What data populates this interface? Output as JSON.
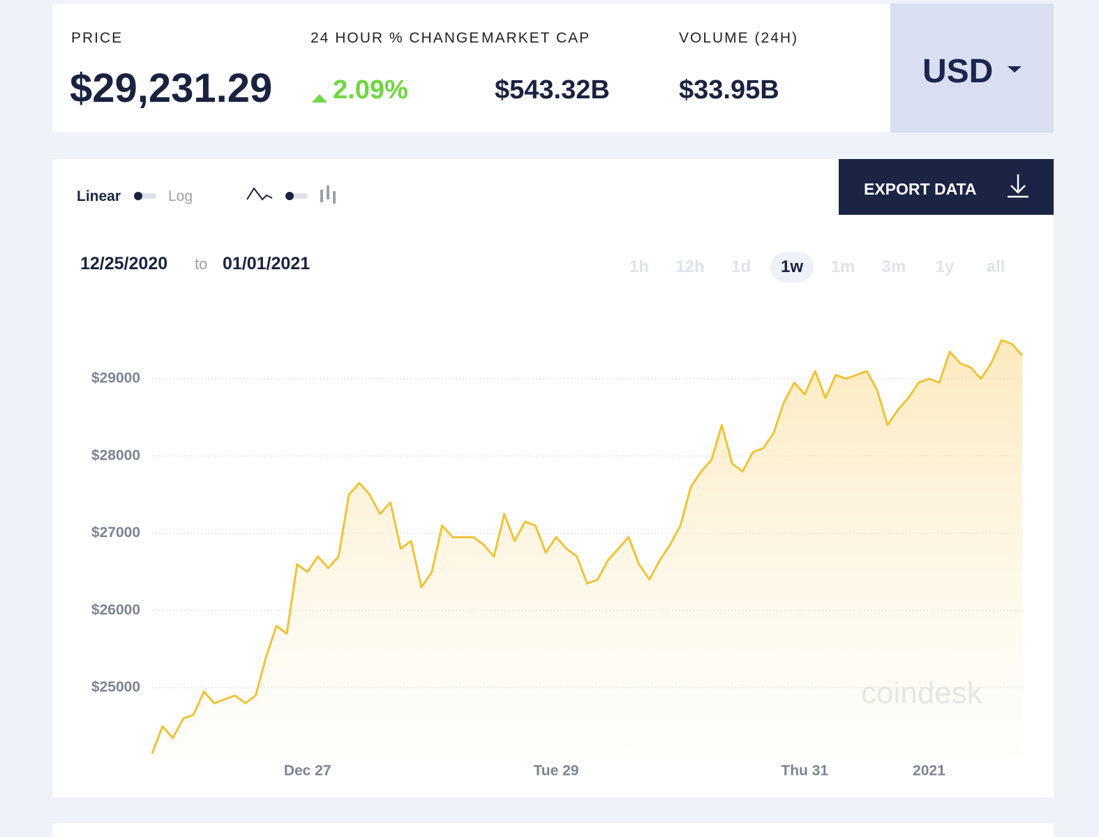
{
  "header": {
    "price_label": "PRICE",
    "price": "$29,231.29",
    "change_label": "24 HOUR % CHANGE",
    "change": "2.09%",
    "market_cap_label": "MARKET CAP",
    "market_cap": "$543.32B",
    "volume_label": "VOLUME (24H)",
    "volume": "$33.95B",
    "currency": "USD"
  },
  "toolbar": {
    "linear": "Linear",
    "log": "Log",
    "export": "EXPORT DATA",
    "date_from": "12/25/2020",
    "date_to_word": "to",
    "date_to": "01/01/2021",
    "ranges": [
      "1h",
      "12h",
      "1d",
      "1w",
      "1m",
      "3m",
      "1y",
      "all"
    ],
    "active_range": 3
  },
  "chart_data": {
    "type": "line",
    "color": "#f0c238",
    "watermark": "coindesk",
    "grid": true,
    "categories": [
      null,
      null,
      null,
      null,
      null,
      null,
      null,
      null,
      null,
      null,
      null,
      null,
      null,
      null,
      null,
      "Dec 27",
      null,
      null,
      null,
      null,
      null,
      null,
      null,
      null,
      null,
      null,
      null,
      null,
      null,
      null,
      null,
      null,
      null,
      null,
      null,
      null,
      null,
      null,
      null,
      "Tue 29",
      null,
      null,
      null,
      null,
      null,
      null,
      null,
      null,
      null,
      null,
      null,
      null,
      null,
      null,
      null,
      null,
      null,
      null,
      null,
      null,
      null,
      null,
      null,
      "Thu 31",
      null,
      null,
      null,
      null,
      null,
      null,
      null,
      null,
      null,
      null,
      null,
      "2021",
      null,
      null,
      null,
      null,
      null,
      null,
      null,
      null,
      null
    ],
    "values": [
      24150,
      24500,
      24350,
      24600,
      24650,
      24950,
      24800,
      24850,
      24900,
      24800,
      24900,
      25400,
      25800,
      25700,
      26600,
      26500,
      26700,
      26550,
      26700,
      27500,
      27650,
      27500,
      27250,
      27400,
      26800,
      26900,
      26300,
      26500,
      27100,
      26950,
      26950,
      26950,
      26850,
      26700,
      27250,
      26900,
      27150,
      27100,
      26750,
      26950,
      26800,
      26700,
      26350,
      26400,
      26650,
      26800,
      26950,
      26600,
      26400,
      26650,
      26850,
      27100,
      27600,
      27800,
      27950,
      28400,
      27900,
      27800,
      28050,
      28100,
      28300,
      28700,
      28950,
      28800,
      29100,
      28750,
      29050,
      29000,
      29050,
      29100,
      28850,
      28400,
      28600,
      28750,
      28950,
      29000,
      28950,
      29350,
      29200,
      29150,
      29000,
      29200,
      29500,
      29450,
      29300
    ],
    "ylim": [
      24100,
      29700
    ],
    "yticks": [
      {
        "value": 25000,
        "label": "$25000"
      },
      {
        "value": 26000,
        "label": "$26000"
      },
      {
        "value": 27000,
        "label": "$27000"
      },
      {
        "value": 28000,
        "label": "$28000"
      },
      {
        "value": 29000,
        "label": "$29000"
      }
    ]
  }
}
